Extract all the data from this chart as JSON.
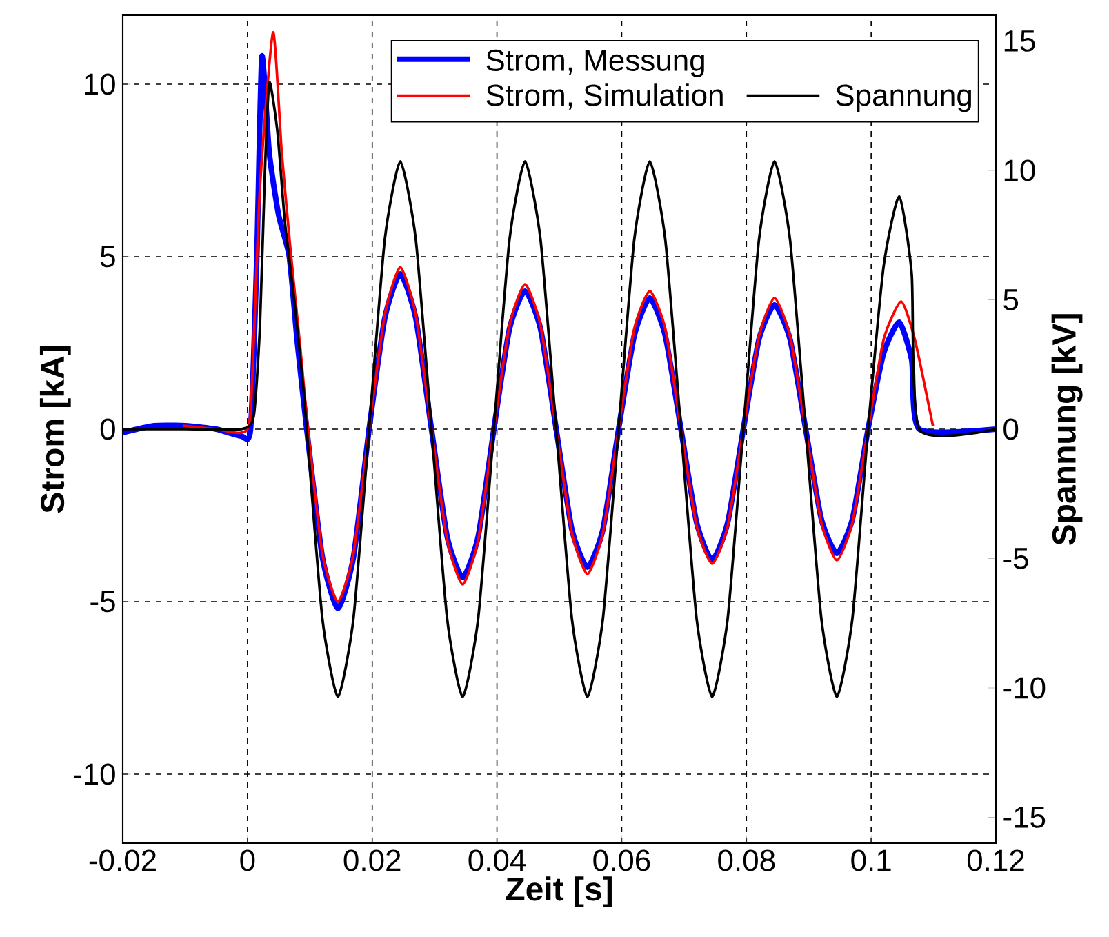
{
  "chart_data": {
    "type": "line",
    "xlabel": "Zeit [s]",
    "ylabel": "Strom [kA]",
    "y2label": "Spannung [kV]",
    "xlim": [
      -0.02,
      0.12
    ],
    "xticks": [
      -0.02,
      0,
      0.02,
      0.04,
      0.06,
      0.08,
      0.1,
      0.12
    ],
    "ylim": [
      -12,
      12
    ],
    "yticks": [
      -10,
      -5,
      0,
      5,
      10
    ],
    "y2lim": [
      -16,
      16
    ],
    "y2ticks": [
      -15,
      -10,
      -5,
      0,
      5,
      10,
      15
    ],
    "grid": true,
    "legend": "top right",
    "line_style": "solid",
    "marker": "none",
    "series": [
      {
        "name": "Strom, Messung",
        "color": "#0000ff",
        "x": [
          -0.02,
          -0.015,
          -0.01,
          -0.005,
          -0.001,
          0.0005,
          0.0015,
          0.0023,
          0.0035,
          0.005,
          0.0067,
          0.008,
          0.0095,
          0.012,
          0.0145,
          0.017,
          0.0195,
          0.022,
          0.0245,
          0.027,
          0.0295,
          0.032,
          0.0345,
          0.037,
          0.0395,
          0.042,
          0.0445,
          0.047,
          0.0495,
          0.052,
          0.0545,
          0.057,
          0.0595,
          0.062,
          0.0645,
          0.067,
          0.0695,
          0.072,
          0.0745,
          0.077,
          0.0795,
          0.082,
          0.0845,
          0.087,
          0.0895,
          0.092,
          0.0945,
          0.097,
          0.0995,
          0.102,
          0.1045,
          0.1065,
          0.1077,
          0.12
        ],
        "values": [
          -0.1,
          0.1,
          0.1,
          0.0,
          -0.2,
          0.0,
          5.0,
          10.8,
          8.0,
          6.2,
          5.0,
          2.5,
          0,
          -3.7,
          -5.2,
          -3.7,
          0,
          3.2,
          4.5,
          3.2,
          0,
          -3.1,
          -4.3,
          -3.1,
          0,
          2.9,
          4.0,
          2.9,
          0,
          -2.9,
          -4.0,
          -2.9,
          0,
          2.7,
          3.8,
          2.7,
          0,
          -2.7,
          -3.8,
          -2.7,
          0,
          2.6,
          3.6,
          2.6,
          0,
          -2.6,
          -3.6,
          -2.6,
          0,
          2.2,
          3.1,
          2.0,
          0,
          0
        ]
      },
      {
        "name": "Strom, Simulation",
        "color": "#ff0000",
        "x": [
          -0.0103,
          -0.005,
          -0.001,
          0.0005,
          0.002,
          0.0041,
          0.0055,
          0.007,
          0.0085,
          0.0097,
          0.012,
          0.0145,
          0.017,
          0.0195,
          0.022,
          0.0245,
          0.027,
          0.0295,
          0.032,
          0.0345,
          0.037,
          0.0395,
          0.042,
          0.0445,
          0.047,
          0.0495,
          0.052,
          0.0545,
          0.057,
          0.0595,
          0.062,
          0.0645,
          0.067,
          0.0695,
          0.072,
          0.0745,
          0.077,
          0.0795,
          0.082,
          0.0845,
          0.087,
          0.0895,
          0.092,
          0.0945,
          0.097,
          0.0995,
          0.102,
          0.1048,
          0.107,
          0.1099
        ],
        "values": [
          0.1,
          0.0,
          -0.1,
          0.5,
          7.0,
          11.5,
          8.0,
          5.0,
          2.3,
          0,
          -3.6,
          -5.0,
          -3.6,
          0,
          3.3,
          4.7,
          3.3,
          0,
          -3.2,
          -4.5,
          -3.2,
          0,
          3.0,
          4.2,
          3.0,
          0,
          -3.0,
          -4.2,
          -3.0,
          0,
          2.9,
          4.0,
          2.9,
          0,
          -2.8,
          -3.9,
          -2.8,
          0,
          2.7,
          3.8,
          2.7,
          0,
          -2.7,
          -3.8,
          -2.7,
          0,
          2.6,
          3.7,
          2.6,
          0.1
        ]
      },
      {
        "name": "Spannung",
        "color": "#000000",
        "axis": "y2",
        "x": [
          -0.02,
          -0.01,
          -0.001,
          0.001,
          0.002,
          0.0028,
          0.0035,
          0.0048,
          0.006,
          0.0075,
          0.009,
          0.0095,
          0.012,
          0.0145,
          0.017,
          0.0195,
          0.022,
          0.0245,
          0.027,
          0.0295,
          0.032,
          0.0345,
          0.037,
          0.0395,
          0.042,
          0.0445,
          0.047,
          0.0495,
          0.052,
          0.0545,
          0.057,
          0.0595,
          0.062,
          0.0645,
          0.067,
          0.0695,
          0.072,
          0.0745,
          0.077,
          0.0795,
          0.082,
          0.0845,
          0.087,
          0.0895,
          0.092,
          0.0945,
          0.097,
          0.0995,
          0.102,
          0.1045,
          0.1065,
          0.1077,
          0.12
        ],
        "values": [
          0,
          0,
          0,
          0.5,
          4,
          10,
          13.4,
          11.5,
          8,
          5,
          1.5,
          0,
          -7.3,
          -10.35,
          -7.3,
          0,
          7.3,
          10.35,
          7.3,
          0,
          -7.3,
          -10.35,
          -7.3,
          0,
          7.3,
          10.35,
          7.3,
          0,
          -7.3,
          -10.35,
          -7.3,
          0,
          7.3,
          10.35,
          7.3,
          0,
          -7.3,
          -10.35,
          -7.3,
          0,
          7.3,
          10.35,
          7.3,
          0,
          -7.3,
          -10.35,
          -7.3,
          0,
          6.3,
          9.0,
          6.0,
          0,
          0
        ]
      }
    ]
  }
}
